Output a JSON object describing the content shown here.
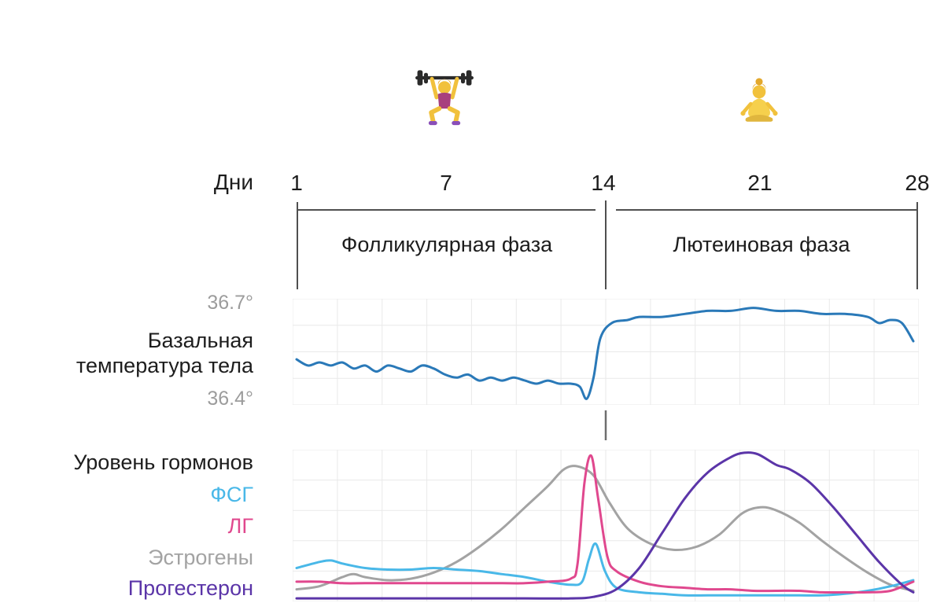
{
  "page": {
    "emojis": [
      {
        "name": "weightlifter",
        "char": "🏋️‍♀️"
      },
      {
        "name": "person-in-lotus-position",
        "char": "🧘‍♀️"
      }
    ],
    "days_label": "Дни",
    "day_ticks": [
      "1",
      "7",
      "14",
      "21",
      "28"
    ],
    "phases": [
      {
        "label": "Фолликулярная фаза",
        "from_day": 1,
        "to_day": 14
      },
      {
        "label": "Лютеиновая фаза",
        "from_day": 14,
        "to_day": 28
      }
    ],
    "temperature_section": {
      "axis_top": "36.7°",
      "axis_bottom": "36.4°",
      "label_line1": "Базальная",
      "label_line2": "температура тела"
    },
    "hormone_section": {
      "title": "Уровень гормонов",
      "legend": [
        {
          "label": "ФСГ",
          "color": "#49b8e8"
        },
        {
          "label": "ЛГ",
          "color": "#e0488e"
        },
        {
          "label": "Эстрогены",
          "color": "#a3a3a3"
        },
        {
          "label": "Прогестерон",
          "color": "#5b35a8"
        }
      ]
    }
  },
  "chart_data": [
    {
      "type": "line",
      "title": "Базальная температура тела",
      "xlabel": "Дни",
      "x_range": [
        1,
        28
      ],
      "x_ticks": [
        1,
        7,
        14,
        21,
        28
      ],
      "y_range": [
        36.38,
        36.73
      ],
      "y_tick_labels": [
        "36.4°",
        "36.7°"
      ],
      "grid": true,
      "grid_cols": 14,
      "grid_rows": 4,
      "series": [
        {
          "key": "bbt",
          "name": "Базальная температура тела",
          "color": "#2a79b8",
          "x": [
            1,
            1.5,
            2,
            2.5,
            3,
            3.5,
            4,
            4.5,
            5,
            5.5,
            6,
            6.5,
            7,
            7.5,
            8,
            8.5,
            9,
            9.5,
            10,
            10.5,
            11,
            11.5,
            12,
            12.5,
            13,
            13.4,
            13.7,
            14,
            14.3,
            14.8,
            15.5,
            16,
            17,
            18,
            19,
            20,
            21,
            22,
            23,
            24,
            25,
            26,
            26.5,
            27,
            27.5,
            28
          ],
          "y": [
            36.53,
            36.51,
            36.52,
            36.51,
            36.52,
            36.5,
            36.51,
            36.49,
            36.51,
            36.5,
            36.49,
            36.51,
            36.5,
            36.48,
            36.47,
            36.48,
            36.46,
            36.47,
            36.46,
            36.47,
            36.46,
            36.45,
            36.46,
            36.45,
            36.45,
            36.44,
            36.4,
            36.47,
            36.6,
            36.65,
            36.66,
            36.67,
            36.67,
            36.68,
            36.69,
            36.69,
            36.7,
            36.69,
            36.69,
            36.68,
            36.68,
            36.67,
            36.65,
            36.66,
            36.65,
            36.59
          ]
        }
      ]
    },
    {
      "type": "line",
      "title": "Уровень гормонов",
      "xlabel": "Дни",
      "x_range": [
        1,
        28
      ],
      "x_ticks": [
        1,
        7,
        14,
        21,
        28
      ],
      "y_range": [
        0,
        100
      ],
      "grid": true,
      "grid_cols": 14,
      "grid_rows": 5,
      "series": [
        {
          "key": "estrogen",
          "name": "Эстрогены",
          "color": "#a3a3a3",
          "x": [
            1,
            2,
            3,
            3.5,
            4,
            5,
            6,
            7,
            8,
            9,
            10,
            11,
            12,
            12.7,
            13.3,
            14,
            14.7,
            15.5,
            16.5,
            17.5,
            18.5,
            19.5,
            20.5,
            21.3,
            22,
            23,
            24,
            25,
            26,
            27,
            28
          ],
          "y": [
            8,
            10,
            16,
            18,
            16,
            14,
            15,
            19,
            26,
            36,
            48,
            62,
            76,
            87,
            89,
            83,
            65,
            48,
            38,
            34,
            36,
            44,
            58,
            62,
            60,
            52,
            40,
            29,
            19,
            11,
            7
          ]
        },
        {
          "key": "fsh",
          "name": "ФСГ",
          "color": "#49b8e8",
          "x": [
            1,
            2,
            2.5,
            3,
            4,
            5,
            6,
            7,
            8,
            9,
            10,
            11,
            12,
            13,
            13.5,
            13.8,
            14.1,
            14.5,
            15,
            16,
            17,
            18,
            19,
            20,
            21,
            22,
            23,
            24,
            25,
            26,
            27,
            28
          ],
          "y": [
            22,
            26,
            27,
            25,
            22,
            21,
            21,
            22,
            21,
            20,
            18,
            16,
            13,
            11,
            13,
            28,
            38,
            20,
            9,
            6,
            5,
            4,
            4,
            4,
            4,
            4,
            4,
            4,
            5,
            7,
            10,
            14
          ]
        },
        {
          "key": "lh",
          "name": "ЛГ",
          "color": "#e0488e",
          "x": [
            1,
            2,
            3,
            4,
            5,
            6,
            7,
            8,
            9,
            10,
            11,
            12,
            13,
            13.3,
            13.6,
            13.9,
            14.2,
            14.6,
            15,
            16,
            17,
            18,
            19,
            20,
            21,
            22,
            23,
            24,
            25,
            26,
            27,
            28
          ],
          "y": [
            13,
            13,
            12,
            12,
            12,
            12,
            12,
            12,
            12,
            12,
            12,
            13,
            15,
            25,
            78,
            96,
            68,
            30,
            20,
            13,
            10,
            9,
            8,
            8,
            7,
            7,
            7,
            6,
            6,
            6,
            7,
            13
          ]
        },
        {
          "key": "progesterone",
          "name": "Прогестерон",
          "color": "#5b35a8",
          "x": [
            1,
            3,
            5,
            7,
            9,
            11,
            13,
            14,
            15,
            16,
            17,
            18,
            19,
            20,
            20.6,
            21.2,
            22,
            22.6,
            23.5,
            24.5,
            25.5,
            26.5,
            27.5,
            28
          ],
          "y": [
            2,
            2,
            2,
            2,
            2,
            2,
            2,
            3,
            8,
            22,
            45,
            68,
            85,
            95,
            98,
            97,
            90,
            87,
            78,
            62,
            44,
            26,
            11,
            6
          ]
        }
      ]
    }
  ]
}
